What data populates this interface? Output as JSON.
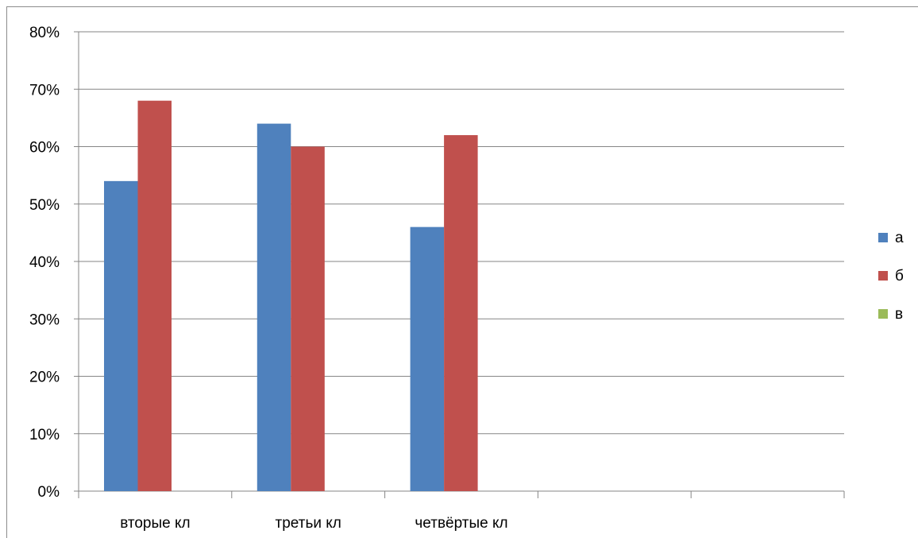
{
  "chart_data": {
    "type": "bar",
    "categories": [
      "вторые кл",
      "третьи кл",
      "четвёртые кл",
      "",
      ""
    ],
    "series": [
      {
        "name": "а",
        "values": [
          54,
          64,
          46,
          null,
          null
        ],
        "color": "#4f81bd"
      },
      {
        "name": "б",
        "values": [
          68,
          60,
          62,
          null,
          null
        ],
        "color": "#c0504d"
      },
      {
        "name": "в",
        "values": [
          null,
          null,
          null,
          null,
          null
        ],
        "color": "#9bbb59"
      }
    ],
    "yticks": [
      "0%",
      "10%",
      "20%",
      "30%",
      "40%",
      "50%",
      "60%",
      "70%",
      "80%"
    ],
    "ylim": [
      0,
      80
    ],
    "ystep": 10,
    "grid": true,
    "legend": "right",
    "colors": {
      "grid": "#868686",
      "axis": "#868686",
      "frame": "#8c8c8c"
    }
  }
}
